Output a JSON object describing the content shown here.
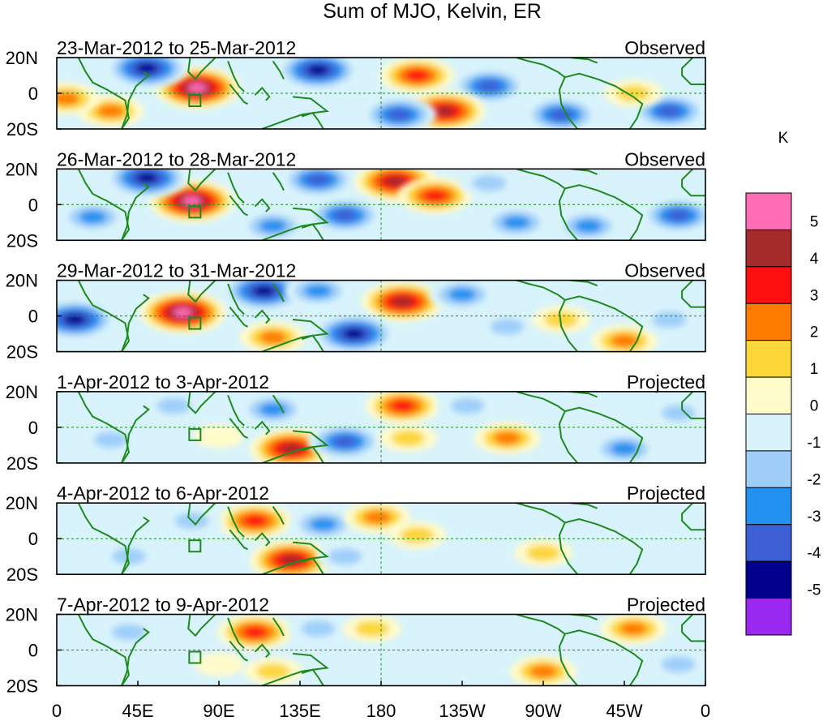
{
  "chart_data": {
    "type": "contour-map",
    "title": "Sum of MJO, Kelvin, ER",
    "units": "K",
    "lat_range": [
      "20S",
      "20N"
    ],
    "lon_range": [
      0,
      360
    ],
    "lat_ticks": [
      "20N",
      "0",
      "20S"
    ],
    "lon_ticks": [
      "0",
      "45E",
      "90E",
      "135E",
      "180",
      "135W",
      "90W",
      "45W",
      "0"
    ],
    "colorbar": {
      "levels": [
        "-5",
        "-4",
        "-3",
        "-2",
        "-1",
        "0",
        "1",
        "2",
        "3",
        "4",
        "5"
      ],
      "colors": [
        "#9a28ee",
        "#00008c",
        "#3c5fd6",
        "#2391f0",
        "#9fcff9",
        "#d8f3fb",
        "#fffbcb",
        "#fcd73a",
        "#ff7c00",
        "#ff1010",
        "#a52a2a",
        "#ff6cb8"
      ]
    },
    "panels": [
      {
        "date_range": "23-Mar-2012 to 25-Mar-2012",
        "status": "Observed",
        "anomalies": [
          {
            "lon": 78,
            "lat": 3,
            "value": 5.5
          },
          {
            "lon": 50,
            "lat": 14,
            "value": -5
          },
          {
            "lon": 145,
            "lat": 13,
            "value": -5
          },
          {
            "lon": 240,
            "lat": 4,
            "value": -4
          },
          {
            "lon": 200,
            "lat": 10,
            "value": 4
          },
          {
            "lon": 215,
            "lat": -10,
            "value": 5
          },
          {
            "lon": 190,
            "lat": -12,
            "value": -4
          },
          {
            "lon": 280,
            "lat": -12,
            "value": -4
          },
          {
            "lon": 340,
            "lat": -10,
            "value": -4
          },
          {
            "lon": 30,
            "lat": -10,
            "value": 3
          },
          {
            "lon": 5,
            "lat": -3,
            "value": 3
          },
          {
            "lon": 320,
            "lat": 0,
            "value": 2
          }
        ]
      },
      {
        "date_range": "26-Mar-2012 to 28-Mar-2012",
        "status": "Observed",
        "anomalies": [
          {
            "lon": 75,
            "lat": 2,
            "value": 5.5
          },
          {
            "lon": 50,
            "lat": 15,
            "value": -5
          },
          {
            "lon": 145,
            "lat": 14,
            "value": -4
          },
          {
            "lon": 188,
            "lat": 13,
            "value": 5
          },
          {
            "lon": 210,
            "lat": 5,
            "value": 4
          },
          {
            "lon": 160,
            "lat": -6,
            "value": -4
          },
          {
            "lon": 120,
            "lat": -12,
            "value": -3
          },
          {
            "lon": 345,
            "lat": -6,
            "value": -4
          },
          {
            "lon": 20,
            "lat": -7,
            "value": -3
          },
          {
            "lon": 295,
            "lat": -12,
            "value": -3
          },
          {
            "lon": 255,
            "lat": -10,
            "value": -3
          },
          {
            "lon": 240,
            "lat": 12,
            "value": -2
          }
        ]
      },
      {
        "date_range": "29-Mar-2012 to 31-Mar-2012",
        "status": "Observed",
        "anomalies": [
          {
            "lon": 70,
            "lat": 2,
            "value": 5.5
          },
          {
            "lon": 10,
            "lat": -2,
            "value": -5
          },
          {
            "lon": 115,
            "lat": 14,
            "value": -5
          },
          {
            "lon": 145,
            "lat": 14,
            "value": -3
          },
          {
            "lon": 192,
            "lat": 8,
            "value": 5
          },
          {
            "lon": 165,
            "lat": -10,
            "value": -5
          },
          {
            "lon": 120,
            "lat": -12,
            "value": 3
          },
          {
            "lon": 225,
            "lat": 12,
            "value": -3
          },
          {
            "lon": 250,
            "lat": -6,
            "value": -2
          },
          {
            "lon": 315,
            "lat": -14,
            "value": 3
          },
          {
            "lon": 340,
            "lat": -2,
            "value": -2
          },
          {
            "lon": 280,
            "lat": -2,
            "value": 2
          }
        ]
      },
      {
        "date_range": "1-Apr-2012 to 3-Apr-2012",
        "status": "Projected",
        "anomalies": [
          {
            "lon": 192,
            "lat": 12,
            "value": 4
          },
          {
            "lon": 130,
            "lat": -12,
            "value": 5
          },
          {
            "lon": 160,
            "lat": -8,
            "value": -4
          },
          {
            "lon": 120,
            "lat": 10,
            "value": -3
          },
          {
            "lon": 250,
            "lat": -6,
            "value": 3
          },
          {
            "lon": 315,
            "lat": -12,
            "value": -3
          },
          {
            "lon": 65,
            "lat": 12,
            "value": -2
          },
          {
            "lon": 30,
            "lat": -7,
            "value": -2
          },
          {
            "lon": 228,
            "lat": 12,
            "value": -2
          },
          {
            "lon": 345,
            "lat": 8,
            "value": -2
          },
          {
            "lon": 195,
            "lat": -6,
            "value": 2
          },
          {
            "lon": 90,
            "lat": -5,
            "value": 1
          }
        ]
      },
      {
        "date_range": "4-Apr-2012 to 6-Apr-2012",
        "status": "Projected",
        "anomalies": [
          {
            "lon": 110,
            "lat": 10,
            "value": 4
          },
          {
            "lon": 130,
            "lat": -12,
            "value": 5
          },
          {
            "lon": 148,
            "lat": 8,
            "value": -3
          },
          {
            "lon": 178,
            "lat": 12,
            "value": 3
          },
          {
            "lon": 160,
            "lat": -10,
            "value": -2
          },
          {
            "lon": 270,
            "lat": -8,
            "value": 2
          },
          {
            "lon": 40,
            "lat": -10,
            "value": -2
          },
          {
            "lon": 75,
            "lat": 10,
            "value": -2
          },
          {
            "lon": 200,
            "lat": 2,
            "value": 2
          },
          {
            "lon": 345,
            "lat": 6,
            "value": -1
          }
        ]
      },
      {
        "date_range": "7-Apr-2012 to 9-Apr-2012",
        "status": "Projected",
        "anomalies": [
          {
            "lon": 110,
            "lat": 10,
            "value": 4
          },
          {
            "lon": 120,
            "lat": -12,
            "value": 2
          },
          {
            "lon": 145,
            "lat": 12,
            "value": -2
          },
          {
            "lon": 320,
            "lat": 12,
            "value": 3
          },
          {
            "lon": 270,
            "lat": -12,
            "value": 3
          },
          {
            "lon": 40,
            "lat": 10,
            "value": -2
          },
          {
            "lon": 345,
            "lat": -8,
            "value": -2
          },
          {
            "lon": 175,
            "lat": 12,
            "value": 2
          },
          {
            "lon": 225,
            "lat": 2,
            "value": -1
          },
          {
            "lon": 90,
            "lat": -8,
            "value": 1
          }
        ]
      }
    ]
  }
}
